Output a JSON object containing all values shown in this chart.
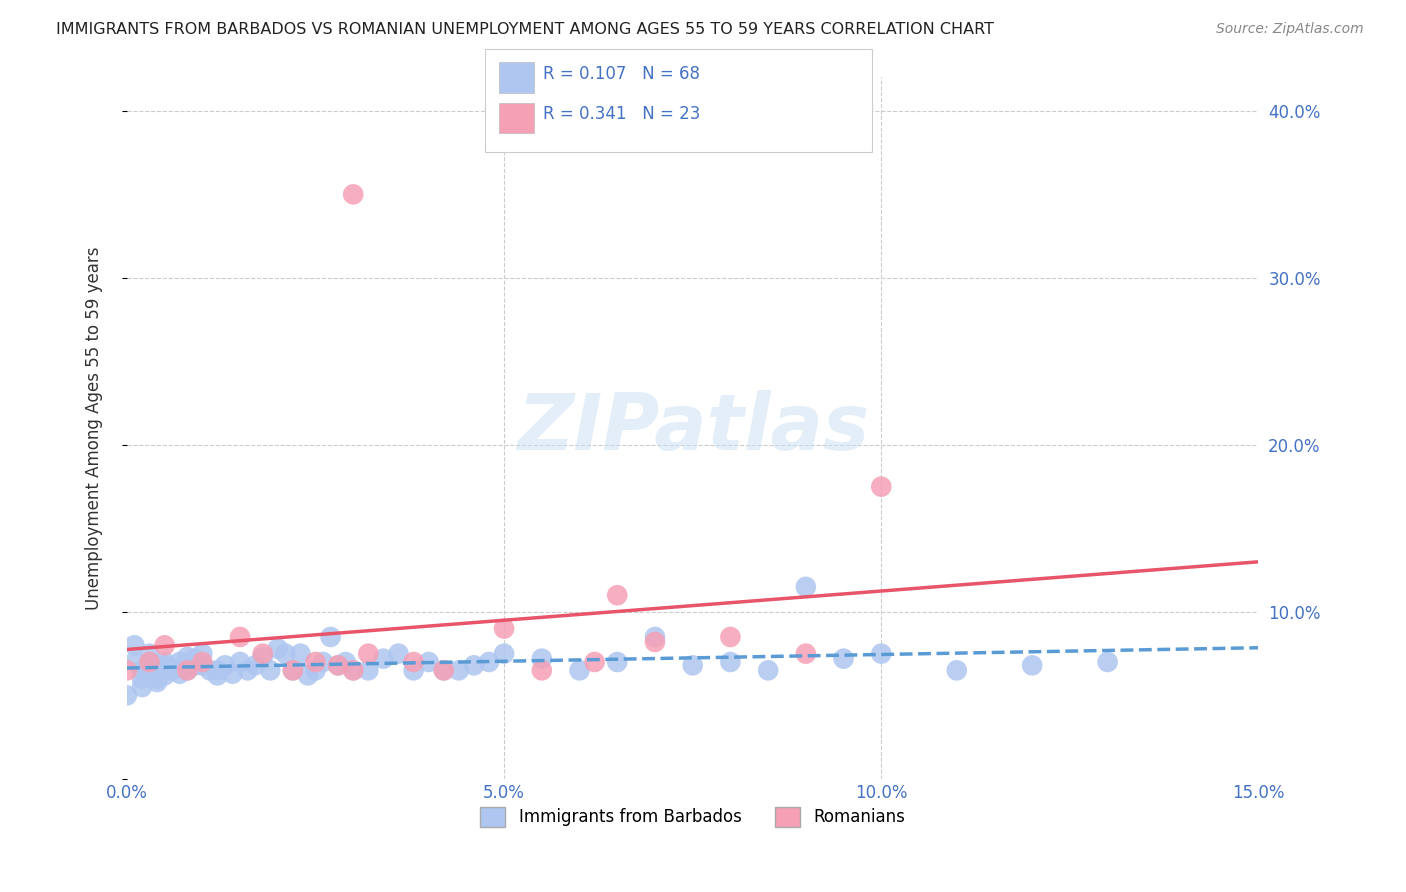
{
  "title": "IMMIGRANTS FROM BARBADOS VS ROMANIAN UNEMPLOYMENT AMONG AGES 55 TO 59 YEARS CORRELATION CHART",
  "source": "Source: ZipAtlas.com",
  "ylabel": "Unemployment Among Ages 55 to 59 years",
  "xlim": [
    0,
    0.15
  ],
  "ylim": [
    0,
    0.42
  ],
  "xtick_labels": [
    "0.0%",
    "5.0%",
    "10.0%",
    "15.0%"
  ],
  "ytick_labels_right": [
    "",
    "10.0%",
    "20.0%",
    "30.0%",
    "40.0%"
  ],
  "background_color": "#ffffff",
  "grid_color": "#cccccc",
  "series1_color": "#aec6f0",
  "series2_color": "#f5a0b5",
  "series1_line_color": "#5b9bd5",
  "series2_line_color": "#e8546a",
  "series1_label": "Immigrants from Barbados",
  "series2_label": "Romanians",
  "R1": 0.107,
  "N1": 68,
  "R2": 0.341,
  "N2": 23,
  "accent_color": "#4472c4",
  "title_color": "#222222",
  "source_color": "#888888",
  "series1_x": [
    0.0,
    0.001,
    0.001,
    0.002,
    0.002,
    0.002,
    0.003,
    0.003,
    0.003,
    0.004,
    0.004,
    0.005,
    0.005,
    0.005,
    0.006,
    0.006,
    0.007,
    0.007,
    0.008,
    0.008,
    0.009,
    0.009,
    0.01,
    0.01,
    0.011,
    0.012,
    0.012,
    0.013,
    0.014,
    0.015,
    0.016,
    0.017,
    0.018,
    0.019,
    0.02,
    0.021,
    0.022,
    0.023,
    0.024,
    0.025,
    0.026,
    0.027,
    0.028,
    0.029,
    0.03,
    0.032,
    0.034,
    0.036,
    0.038,
    0.04,
    0.042,
    0.044,
    0.046,
    0.048,
    0.05,
    0.055,
    0.06,
    0.065,
    0.07,
    0.075,
    0.08,
    0.085,
    0.09,
    0.095,
    0.1,
    0.11,
    0.12,
    0.13
  ],
  "series1_y": [
    0.05,
    0.07,
    0.08,
    0.065,
    0.06,
    0.055,
    0.07,
    0.075,
    0.065,
    0.06,
    0.058,
    0.062,
    0.07,
    0.068,
    0.065,
    0.066,
    0.063,
    0.07,
    0.073,
    0.065,
    0.068,
    0.072,
    0.075,
    0.068,
    0.065,
    0.062,
    0.065,
    0.068,
    0.063,
    0.07,
    0.065,
    0.068,
    0.073,
    0.065,
    0.078,
    0.075,
    0.065,
    0.075,
    0.062,
    0.065,
    0.07,
    0.085,
    0.068,
    0.07,
    0.065,
    0.065,
    0.072,
    0.075,
    0.065,
    0.07,
    0.065,
    0.065,
    0.068,
    0.07,
    0.075,
    0.072,
    0.065,
    0.07,
    0.085,
    0.068,
    0.07,
    0.065,
    0.115,
    0.072,
    0.075,
    0.065,
    0.068,
    0.07
  ],
  "series2_x": [
    0.0,
    0.003,
    0.005,
    0.008,
    0.01,
    0.015,
    0.018,
    0.022,
    0.025,
    0.028,
    0.03,
    0.032,
    0.038,
    0.042,
    0.05,
    0.055,
    0.062,
    0.065,
    0.07,
    0.08,
    0.09,
    0.1,
    0.03
  ],
  "series2_y": [
    0.065,
    0.07,
    0.08,
    0.065,
    0.07,
    0.085,
    0.075,
    0.065,
    0.07,
    0.068,
    0.065,
    0.075,
    0.07,
    0.065,
    0.09,
    0.065,
    0.07,
    0.11,
    0.082,
    0.085,
    0.075,
    0.175,
    0.35
  ]
}
